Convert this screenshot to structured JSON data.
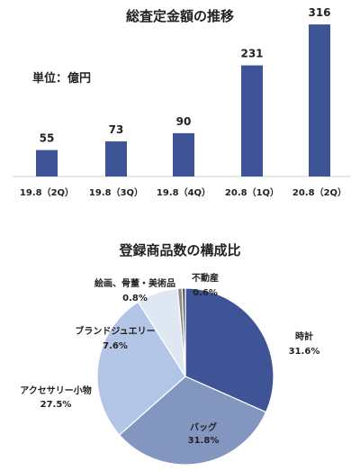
{
  "chart_data": [
    {
      "type": "bar",
      "title": "総査定金額の推移",
      "unit_label": "単位：億円",
      "categories": [
        "19.8（2Q）",
        "19.8（3Q）",
        "19.8（4Q）",
        "20.8（1Q）",
        "20.8（2Q）"
      ],
      "values": [
        55,
        73,
        90,
        231,
        316
      ],
      "value_labels": [
        "55",
        "73",
        "90",
        "231",
        "316"
      ],
      "ylim": [
        0,
        320
      ],
      "grid": false,
      "color": "#3f5496"
    },
    {
      "type": "pie",
      "title": "登録商品数の構成比",
      "slices": [
        {
          "label": "時計",
          "value": 31.6,
          "pct": "31.6%",
          "color": "#3f5496"
        },
        {
          "label": "バッグ",
          "value": 31.8,
          "pct": "31.8%",
          "color": "#8396bf"
        },
        {
          "label": "アクセサリー小物",
          "value": 27.5,
          "pct": "27.5%",
          "color": "#b3c5e6"
        },
        {
          "label": "ブランドジュエリー",
          "value": 7.6,
          "pct": "7.6%",
          "color": "#dfe7f3"
        },
        {
          "label": "絵画、骨董・美術品",
          "value": 0.8,
          "pct": "0.8%",
          "color": "#8a8a8a"
        },
        {
          "label": "不動産",
          "value": 0.6,
          "pct": "0.6%",
          "color": "#5b5b5b"
        }
      ]
    }
  ]
}
